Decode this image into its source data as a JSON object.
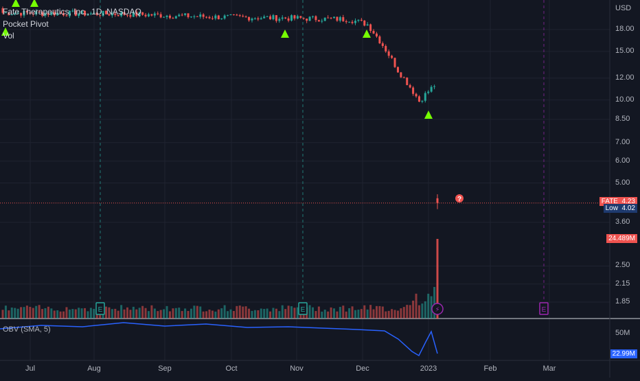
{
  "header": {
    "title": "Fate Therapeutics, Inc., 1D, NASDAQ",
    "indicator_1": "Pocket Pivot",
    "indicator_2": "Vol",
    "obv_label": "OBV (SMA, 5)"
  },
  "axis": {
    "currency": "USD",
    "price_ticks": [
      "18.00",
      "15.00",
      "12.00",
      "10.00",
      "8.50",
      "7.00",
      "6.00",
      "5.00",
      "3.60",
      "2.50",
      "2.15",
      "1.85"
    ],
    "x_ticks": [
      "Jul",
      "Aug",
      "Sep",
      "Oct",
      "Nov",
      "Dec",
      "2023",
      "Feb",
      "Mar"
    ],
    "obv_tick": "50M"
  },
  "badges": {
    "ticker": "FATE",
    "last_price": "4.23",
    "low_label": "Low",
    "low_value": "4.02",
    "volume": "24.489M",
    "obv_value": "22.99M"
  },
  "colors": {
    "background": "#131722",
    "up": "#26a69a",
    "down": "#ef5350",
    "signal": "#76ff03",
    "obv": "#2962ff",
    "earnings_past": "#26a69a",
    "earnings_future": "#9c27b0"
  },
  "events": {
    "earnings_marker": "E",
    "dividend_marker": "⚡",
    "unknown_marker": "?"
  },
  "chart_data": {
    "type": "candlestick",
    "scale": "log",
    "price_ylim": [
      1.6,
      21
    ],
    "months": [
      "Jul",
      "Aug",
      "Sep",
      "Oct",
      "Nov",
      "Dec",
      "2023",
      "Feb",
      "Mar"
    ],
    "ohlc_start": {
      "open": 21.5,
      "close": 20.7,
      "drift_segments": [
        {
          "bars": 40,
          "target": 20.5
        },
        {
          "bars": 30,
          "target": 20.0
        },
        {
          "bars": 25,
          "target": 19.8
        },
        {
          "bars": 20,
          "target": 19.6
        },
        {
          "bars": 6,
          "target": 18.8
        },
        {
          "bars": 10,
          "target": 12.8
        },
        {
          "bars": 7,
          "target": 9.9
        },
        {
          "bars": 5,
          "target": 11.3
        },
        {
          "bars": 1,
          "target": 4.23
        }
      ]
    },
    "last_bar": {
      "open": 4.4,
      "high": 4.55,
      "low": 4.02,
      "close": 4.23
    },
    "pocket_pivot_signals": [
      "Jun",
      "Jun",
      "Jun",
      "Oct",
      "Dec",
      "Jan"
    ],
    "volume_last": 24489000,
    "obv_last": 22990000,
    "earnings": [
      "Aug",
      "Nov",
      "Mar"
    ]
  }
}
